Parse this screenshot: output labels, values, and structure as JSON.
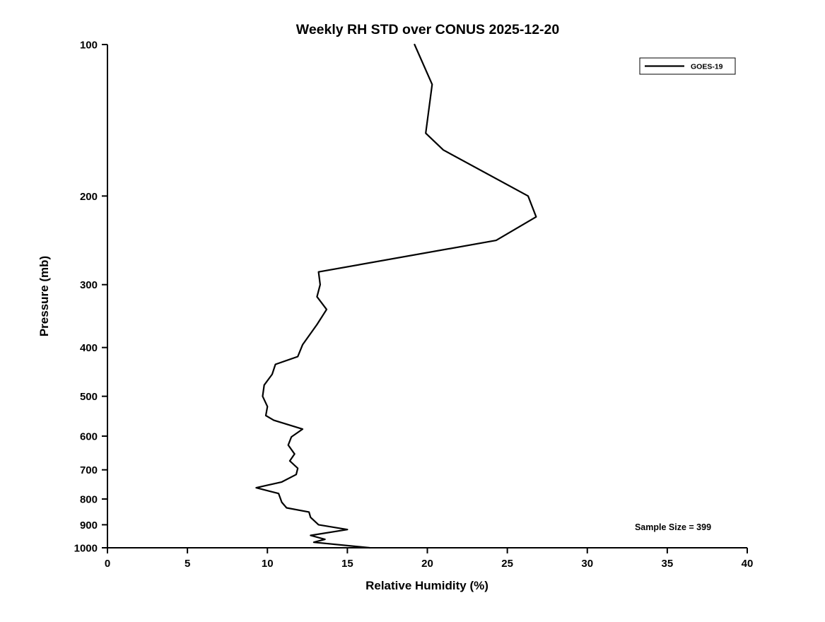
{
  "chart_data": {
    "type": "line",
    "title": "Weekly RH STD over CONUS 2025-12-20",
    "xlabel": "Relative Humidity (%)",
    "ylabel": "Pressure (mb)",
    "xlim": [
      0,
      40
    ],
    "x_ticks": [
      0,
      5,
      10,
      15,
      20,
      25,
      30,
      35,
      40
    ],
    "ylim": [
      100,
      1000
    ],
    "y_scale": "log",
    "y_axis_reversed": true,
    "y_ticks": [
      100,
      200,
      300,
      400,
      500,
      600,
      700,
      800,
      900,
      1000
    ],
    "grid": false,
    "legend_position": "top-right",
    "annotation": "Sample Size = 399",
    "line_color": "#000000",
    "series": [
      {
        "name": "GOES-19",
        "color": "#000000",
        "points_pressure_rh": [
          [
            100,
            19.2
          ],
          [
            120,
            20.3
          ],
          [
            150,
            19.9
          ],
          [
            162,
            21.0
          ],
          [
            200,
            26.3
          ],
          [
            220,
            26.8
          ],
          [
            245,
            24.3
          ],
          [
            283,
            13.2
          ],
          [
            300,
            13.3
          ],
          [
            317,
            13.1
          ],
          [
            336,
            13.7
          ],
          [
            360,
            13.1
          ],
          [
            395,
            12.2
          ],
          [
            417,
            11.9
          ],
          [
            432,
            10.5
          ],
          [
            452,
            10.3
          ],
          [
            475,
            9.8
          ],
          [
            500,
            9.7
          ],
          [
            524,
            10.0
          ],
          [
            546,
            9.9
          ],
          [
            558,
            10.4
          ],
          [
            581,
            12.2
          ],
          [
            602,
            11.5
          ],
          [
            625,
            11.3
          ],
          [
            651,
            11.7
          ],
          [
            672,
            11.4
          ],
          [
            695,
            11.9
          ],
          [
            715,
            11.8
          ],
          [
            740,
            10.9
          ],
          [
            760,
            9.3
          ],
          [
            780,
            10.7
          ],
          [
            812,
            10.9
          ],
          [
            833,
            11.2
          ],
          [
            849,
            12.6
          ],
          [
            870,
            12.7
          ],
          [
            900,
            13.2
          ],
          [
            920,
            15.0
          ],
          [
            945,
            12.7
          ],
          [
            962,
            13.6
          ],
          [
            975,
            12.9
          ],
          [
            1000,
            16.4
          ]
        ]
      }
    ]
  }
}
